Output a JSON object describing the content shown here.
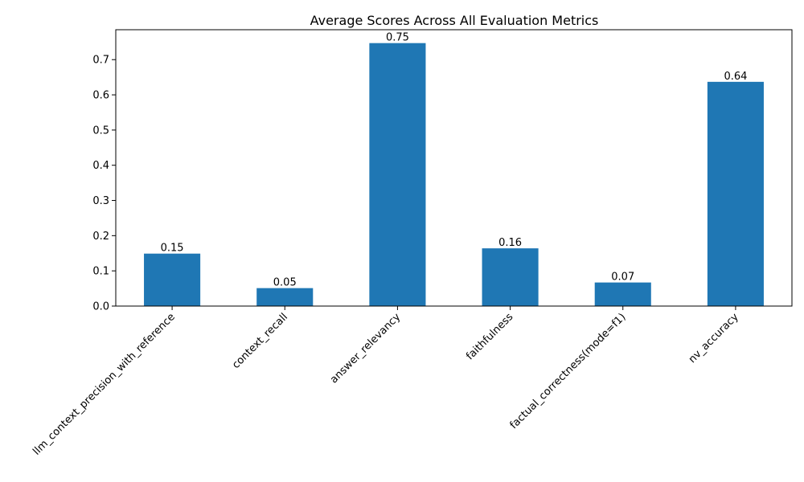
{
  "chart_data": {
    "type": "bar",
    "title": "Average Scores Across All Evaluation Metrics",
    "xlabel": "",
    "ylabel": "",
    "categories": [
      "llm_context_precision_with_reference",
      "context_recall",
      "answer_relevancy",
      "faithfulness",
      "factual_correctness(mode=f1)",
      "nv_accuracy"
    ],
    "values": [
      0.149,
      0.051,
      0.747,
      0.164,
      0.067,
      0.637
    ],
    "data_labels": [
      "0.15",
      "0.05",
      "0.75",
      "0.16",
      "0.07",
      "0.64"
    ],
    "ylim": [
      0,
      0.785
    ],
    "yticks": [
      0.0,
      0.1,
      0.2,
      0.3,
      0.4,
      0.5,
      0.6,
      0.7
    ],
    "ytick_labels": [
      "0.0",
      "0.1",
      "0.2",
      "0.3",
      "0.4",
      "0.5",
      "0.6",
      "0.7"
    ],
    "bar_color": "#1f77b4",
    "grid": false
  }
}
